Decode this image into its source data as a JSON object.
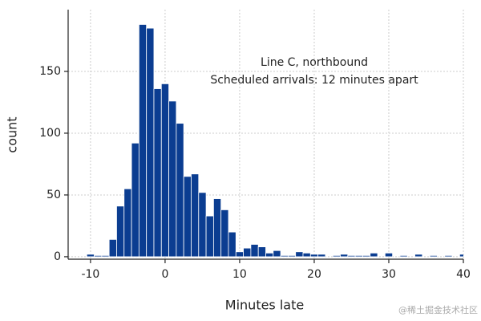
{
  "chart_data": {
    "type": "histogram",
    "annotation": [
      "Line C, northbound",
      "Scheduled arrivals: 12 minutes apart"
    ],
    "x_label": "Minutes late",
    "y_label": "count",
    "watermark": "@稀土掘金技术社区",
    "color": "#0b3d91",
    "grid": true,
    "bins": [
      -10.5,
      -9.5,
      -8.5,
      -7.5,
      -6.5,
      -5.5,
      -4.5,
      -3.5,
      -2.5,
      -1.5,
      -0.5,
      0.5,
      1.5,
      2.5,
      3.5,
      4.5,
      5.5,
      6.5,
      7.5,
      8.5,
      9.5,
      10.5,
      11.5,
      12.5,
      13.5,
      14.5,
      15.5,
      16.5,
      17.5,
      18.5,
      19.5,
      20.5,
      21.5,
      22.5,
      23.5,
      24.5,
      25.5,
      26.5,
      27.5,
      28.5,
      29.5,
      30.5,
      31.5,
      32.5,
      33.5,
      34.5,
      35.5,
      36.5,
      37.5,
      38.5,
      39.5,
      40.5
    ],
    "values": [
      2,
      1,
      1,
      14,
      41,
      55,
      92,
      188,
      185,
      136,
      140,
      126,
      108,
      65,
      67,
      52,
      33,
      47,
      38,
      20,
      4,
      7,
      10,
      8,
      3,
      5,
      1,
      1,
      4,
      3,
      2,
      2,
      0,
      1,
      2,
      1,
      1,
      1,
      3,
      0,
      3,
      0,
      1,
      0,
      2,
      0,
      1,
      0,
      1,
      0,
      2
    ],
    "xlim": [
      -13,
      40
    ],
    "ylim": [
      -2,
      200
    ],
    "xticks": [
      -10,
      0,
      10,
      20,
      30,
      40
    ],
    "yticks": [
      0,
      50,
      100,
      150
    ]
  }
}
